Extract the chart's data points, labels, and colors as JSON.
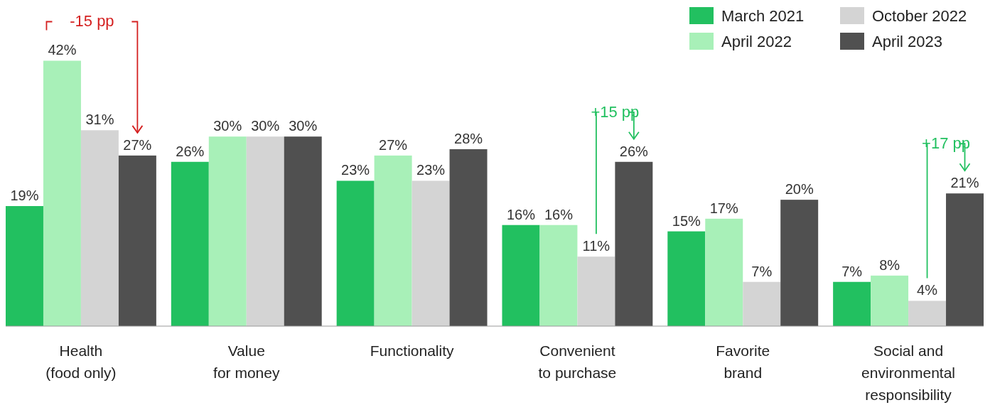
{
  "chart_data": {
    "type": "bar",
    "categories": [
      "Health\n(food only)",
      "Value\nfor money",
      "Functionality",
      "Convenient\nto purchase",
      "Favorite\nbrand",
      "Social and\nenvironmental\nresponsibility"
    ],
    "series": [
      {
        "name": "March 2021",
        "color": "#22c060",
        "values": [
          19,
          26,
          23,
          16,
          15,
          7
        ],
        "value_labels": [
          "19%",
          "26%",
          "23%",
          "16%",
          "15%",
          "7%"
        ]
      },
      {
        "name": "April 2022",
        "color": "#a8f0b8",
        "values": [
          42,
          30,
          27,
          16,
          17,
          8
        ],
        "value_labels": [
          "42%",
          "30%",
          "27%",
          "16%",
          "17%",
          "8%"
        ]
      },
      {
        "name": "October 2022",
        "color": "#d4d4d4",
        "values": [
          31,
          30,
          23,
          11,
          7,
          4
        ],
        "value_labels": [
          "31%",
          "30%",
          "23%",
          "11%",
          "7%",
          "4%"
        ]
      },
      {
        "name": "April 2023",
        "color": "#505050",
        "values": [
          27,
          30,
          28,
          26,
          20,
          21
        ],
        "value_labels": [
          "27%",
          "30%",
          "28%",
          "26%",
          "20%",
          "21%"
        ]
      }
    ],
    "legend": "top right",
    "annotations": [
      "-15 pp",
      "+15 pp",
      "+17 pp"
    ]
  }
}
